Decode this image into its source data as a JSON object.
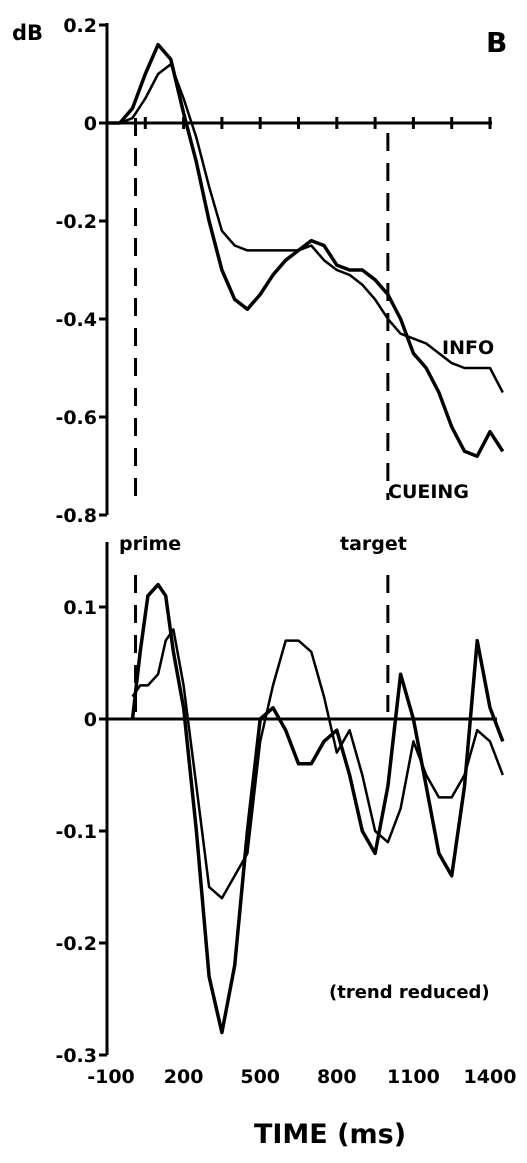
{
  "chart_data": [
    {
      "type": "line",
      "panel_label": "B",
      "y_unit_label": "dB",
      "ylim": [
        -0.8,
        0.2
      ],
      "y_ticks": [
        "0.2",
        "0",
        "-0.2",
        "-0.4",
        "-0.6",
        "-0.8"
      ],
      "y_tick_values": [
        0.2,
        0,
        -0.2,
        -0.4,
        -0.6,
        -0.8
      ],
      "xlim": [
        -100,
        1500
      ],
      "x_tick_values": [
        -100,
        50,
        200,
        350,
        500,
        650,
        800,
        950,
        1100,
        1250,
        1400
      ],
      "events": [
        {
          "label": "prime",
          "x": 0
        },
        {
          "label": "target",
          "x": 1000
        }
      ],
      "series": [
        {
          "name": "INFO",
          "x": [
            -100,
            -50,
            0,
            50,
            100,
            150,
            200,
            250,
            300,
            350,
            400,
            450,
            500,
            550,
            600,
            650,
            700,
            750,
            800,
            850,
            900,
            950,
            1000,
            1050,
            1100,
            1150,
            1200,
            1250,
            1300,
            1350,
            1400,
            1450
          ],
          "y": [
            0,
            0,
            0.01,
            0.05,
            0.1,
            0.12,
            0.05,
            -0.03,
            -0.13,
            -0.22,
            -0.25,
            -0.26,
            -0.26,
            -0.26,
            -0.26,
            -0.26,
            -0.25,
            -0.28,
            -0.3,
            -0.31,
            -0.33,
            -0.36,
            -0.4,
            -0.43,
            -0.44,
            -0.45,
            -0.47,
            -0.49,
            -0.5,
            -0.5,
            -0.5,
            -0.55
          ]
        },
        {
          "name": "CUEING",
          "x": [
            -100,
            -50,
            0,
            50,
            100,
            150,
            200,
            250,
            300,
            350,
            400,
            450,
            500,
            550,
            600,
            650,
            700,
            750,
            800,
            850,
            900,
            950,
            1000,
            1050,
            1100,
            1150,
            1200,
            1250,
            1300,
            1350,
            1400,
            1450
          ],
          "y": [
            0,
            0,
            0.03,
            0.1,
            0.16,
            0.13,
            0.02,
            -0.08,
            -0.2,
            -0.3,
            -0.36,
            -0.38,
            -0.35,
            -0.31,
            -0.28,
            -0.26,
            -0.24,
            -0.25,
            -0.29,
            -0.3,
            -0.3,
            -0.32,
            -0.35,
            -0.4,
            -0.47,
            -0.5,
            -0.55,
            -0.62,
            -0.67,
            -0.68,
            -0.63,
            -0.67
          ]
        }
      ]
    },
    {
      "type": "line",
      "annotation": "(trend reduced)",
      "ylim": [
        -0.3,
        0.15
      ],
      "y_ticks": [
        "0.1",
        "0",
        "-0.1",
        "-0.2",
        "-0.3"
      ],
      "y_tick_values": [
        0.1,
        0,
        -0.1,
        -0.2,
        -0.3
      ],
      "xlim": [
        -100,
        1500
      ],
      "x_ticks": [
        "-100",
        "200",
        "500",
        "800",
        "1100",
        "1400"
      ],
      "x_tick_values": [
        -100,
        200,
        500,
        800,
        1100,
        1400
      ],
      "xlabel": "TIME (ms)",
      "series": [
        {
          "x": [
            0,
            30,
            60,
            100,
            130,
            160,
            200,
            250,
            300,
            350,
            400,
            450,
            500,
            550,
            600,
            650,
            700,
            750,
            800,
            850,
            900,
            950,
            1000,
            1050,
            1100,
            1150,
            1200,
            1250,
            1300,
            1350,
            1400,
            1450
          ],
          "y": [
            0.02,
            0.03,
            0.03,
            0.04,
            0.07,
            0.08,
            0.03,
            -0.06,
            -0.15,
            -0.16,
            -0.14,
            -0.12,
            -0.02,
            0.03,
            0.07,
            0.07,
            0.06,
            0.02,
            -0.03,
            -0.01,
            -0.05,
            -0.1,
            -0.11,
            -0.08,
            -0.02,
            -0.05,
            -0.07,
            -0.07,
            -0.05,
            -0.01,
            -0.02,
            -0.05
          ]
        },
        {
          "x": [
            0,
            30,
            60,
            100,
            130,
            160,
            200,
            250,
            300,
            350,
            400,
            450,
            500,
            550,
            600,
            650,
            700,
            750,
            800,
            850,
            900,
            950,
            1000,
            1050,
            1100,
            1150,
            1200,
            1250,
            1300,
            1350,
            1400,
            1450
          ],
          "y": [
            0,
            0.06,
            0.11,
            0.12,
            0.11,
            0.06,
            0.01,
            -0.1,
            -0.23,
            -0.28,
            -0.22,
            -0.1,
            0,
            0.01,
            -0.01,
            -0.04,
            -0.04,
            -0.02,
            -0.01,
            -0.05,
            -0.1,
            -0.12,
            -0.06,
            0.04,
            0,
            -0.06,
            -0.12,
            -0.14,
            -0.06,
            0.07,
            0.01,
            -0.02
          ]
        }
      ]
    }
  ]
}
